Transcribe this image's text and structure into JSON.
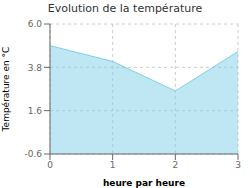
{
  "chart_data": {
    "type": "area",
    "title": "Evolution de la température",
    "x_label": "heure par heure",
    "y_label": "Température en °C",
    "x": [
      0,
      1,
      2,
      3
    ],
    "values": [
      4.9,
      4.1,
      2.6,
      4.6
    ],
    "xlim": [
      0,
      3
    ],
    "xticks": [
      0,
      1,
      2,
      3
    ],
    "ylim": [
      -0.6,
      6.0
    ],
    "yticks": [
      -0.6,
      1.6,
      3.8,
      {
        "value": 6.0,
        "label": "6.0"
      }
    ],
    "color": "#7ecfe8",
    "grid": true
  }
}
